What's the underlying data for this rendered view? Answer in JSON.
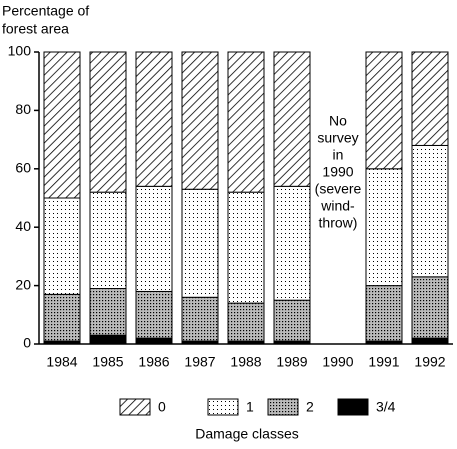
{
  "chart_data": {
    "type": "stacked-bar",
    "y_label": [
      "Percentage of",
      "forest area"
    ],
    "x_label": "Damage classes",
    "annotation": [
      "No",
      "survey",
      "in",
      "1990",
      "(severe",
      "wind-",
      "throw)"
    ],
    "categories": [
      "1984",
      "1985",
      "1986",
      "1987",
      "1988",
      "1989",
      "1990",
      "1991",
      "1992"
    ],
    "series": [
      {
        "name": "0",
        "color": "#000000",
        "pattern": "hatch",
        "values": [
          50,
          48,
          46,
          47,
          48,
          46,
          null,
          40,
          32
        ]
      },
      {
        "name": "1",
        "color": "#000000",
        "pattern": "dots",
        "values": [
          33,
          33,
          36,
          37,
          38,
          39,
          null,
          40,
          45
        ]
      },
      {
        "name": "2",
        "color": "#000000",
        "pattern": "dense-dots",
        "values": [
          16,
          16,
          16,
          15,
          13,
          14,
          null,
          19,
          21
        ]
      },
      {
        "name": "3/4",
        "color": "#000000",
        "pattern": "solid",
        "values": [
          1,
          3,
          2,
          1,
          1,
          1,
          null,
          1,
          2
        ]
      }
    ],
    "ylim": [
      0,
      100
    ],
    "yticks": [
      0,
      20,
      40,
      60,
      80,
      100
    ],
    "legend": "bottom"
  }
}
